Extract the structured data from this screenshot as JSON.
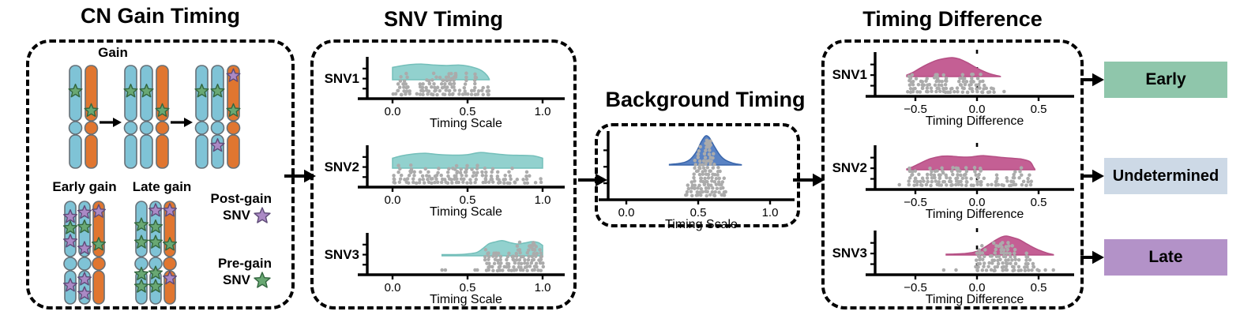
{
  "colors": {
    "ink": "#000000",
    "dots": "#ababab",
    "chromosome_blue": "#7fc3d6",
    "chromosome_orange": "#e07630",
    "chromosome_outline": "#667077",
    "star_green_fill": "#69a873",
    "star_green_stroke": "#33663f",
    "star_purple_fill": "#ab89c5",
    "star_purple_stroke": "#5e4b77",
    "density_teal_fill": "#92d1ce",
    "density_teal_stroke": "#74bfba",
    "density_blue_fill": "#5a83c4",
    "density_blue_stroke": "#3a66ab",
    "density_pink_fill": "#c45f94",
    "density_pink_stroke": "#b54f84"
  },
  "panels": {
    "cn_gain": {
      "title": "CN Gain Timing",
      "gain_label": "Gain",
      "early_gain_label": "Early gain",
      "late_gain_label": "Late gain",
      "legend_post": {
        "line1": "Post-gain",
        "line2": "SNV",
        "star": "p"
      },
      "legend_pre": {
        "line1": "Pre-gain",
        "line2": "SNV",
        "star": "g"
      },
      "gain_row_groups": [
        {
          "chroms": [
            {
              "color": "blue",
              "stars": [
                {
                  "c": "g",
                  "f": 0.25
                }
              ]
            },
            {
              "color": "orange",
              "stars": [
                {
                  "c": "g",
                  "f": 0.44
                }
              ]
            }
          ]
        },
        {
          "chroms": [
            {
              "color": "blue",
              "stars": [
                {
                  "c": "g",
                  "f": 0.25
                }
              ]
            },
            {
              "color": "blue",
              "stars": [
                {
                  "c": "g",
                  "f": 0.25
                }
              ]
            },
            {
              "color": "orange",
              "stars": [
                {
                  "c": "g",
                  "f": 0.44
                }
              ]
            }
          ]
        },
        {
          "chroms": [
            {
              "color": "blue",
              "stars": [
                {
                  "c": "g",
                  "f": 0.25
                }
              ]
            },
            {
              "color": "blue",
              "stars": [
                {
                  "c": "g",
                  "f": 0.25
                },
                {
                  "c": "p",
                  "f": 0.78
                }
              ]
            },
            {
              "color": "orange",
              "stars": [
                {
                  "c": "p",
                  "f": 0.1
                },
                {
                  "c": "g",
                  "f": 0.44
                }
              ]
            }
          ]
        }
      ],
      "early_group": {
        "chroms": [
          {
            "color": "blue",
            "stars": [
              {
                "c": "p",
                "f": 0.15
              },
              {
                "c": "g",
                "f": 0.26
              },
              {
                "c": "p",
                "f": 0.39
              },
              {
                "c": "p",
                "f": 0.82
              }
            ]
          },
          {
            "color": "blue",
            "stars": [
              {
                "c": "p",
                "f": 0.11
              },
              {
                "c": "g",
                "f": 0.25
              },
              {
                "c": "p",
                "f": 0.46
              },
              {
                "c": "p",
                "f": 0.76
              },
              {
                "c": "p",
                "f": 0.9
              }
            ]
          },
          {
            "color": "orange",
            "stars": [
              {
                "c": "p",
                "f": 0.1
              },
              {
                "c": "g",
                "f": 0.42
              }
            ]
          }
        ]
      },
      "late_group": {
        "chroms": [
          {
            "color": "blue",
            "stars": [
              {
                "c": "g",
                "f": 0.23
              },
              {
                "c": "g",
                "f": 0.4
              },
              {
                "c": "g",
                "f": 0.71
              },
              {
                "c": "g",
                "f": 0.83
              }
            ]
          },
          {
            "color": "blue",
            "stars": [
              {
                "c": "p",
                "f": 0.09
              },
              {
                "c": "g",
                "f": 0.25
              },
              {
                "c": "g",
                "f": 0.4
              },
              {
                "c": "g",
                "f": 0.7
              },
              {
                "c": "g",
                "f": 0.83
              }
            ]
          },
          {
            "color": "orange",
            "stars": [
              {
                "c": "p",
                "f": 0.09
              },
              {
                "c": "g",
                "f": 0.42
              },
              {
                "c": "p",
                "f": 0.75
              }
            ]
          }
        ]
      }
    },
    "snv_timing": {
      "title": "SNV Timing"
    },
    "background_timing": {
      "title": "Background Timing"
    },
    "timing_difference": {
      "title": "Timing Difference"
    }
  },
  "outcomes": [
    {
      "label": "Early",
      "color": "#8fc6ab"
    },
    {
      "label": "Undetermined",
      "color": "#cdd9e6"
    },
    {
      "label": "Late",
      "color": "#b392c8"
    }
  ],
  "chart_data": [
    {
      "id": "snv1",
      "panel": "SNV Timing",
      "type": "ridgeline-dotplot",
      "row_label": "SNV1",
      "x_label": "Timing Scale",
      "x_tick_labels": [
        "0.0",
        "0.5",
        "1.0"
      ],
      "x_tick_values": [
        0,
        0.5,
        1.0
      ],
      "x_range": [
        -0.18,
        1.15
      ],
      "density_color": "teal",
      "zero_line": false,
      "density": [
        [
          0.0,
          0.52
        ],
        [
          0.05,
          0.58
        ],
        [
          0.12,
          0.64
        ],
        [
          0.2,
          0.66
        ],
        [
          0.28,
          0.62
        ],
        [
          0.36,
          0.6
        ],
        [
          0.44,
          0.62
        ],
        [
          0.5,
          0.58
        ],
        [
          0.56,
          0.48
        ],
        [
          0.6,
          0.36
        ],
        [
          0.63,
          0.18
        ],
        [
          0.645,
          0.02
        ]
      ],
      "dots": {
        "seed": 11,
        "cap": 7,
        "groups": [
          {
            "from": 0.005,
            "to": 0.65,
            "n": 120
          }
        ],
        "outliers": []
      }
    },
    {
      "id": "snv2",
      "panel": "SNV Timing",
      "type": "ridgeline-dotplot",
      "row_label": "SNV2",
      "x_label": "Timing Scale",
      "x_tick_labels": [
        "0.0",
        "0.5",
        "1.0"
      ],
      "x_tick_values": [
        0,
        0.5,
        1.0
      ],
      "x_range": [
        -0.18,
        1.15
      ],
      "density_color": "teal",
      "zero_line": false,
      "density": [
        [
          0.0,
          0.42
        ],
        [
          0.06,
          0.52
        ],
        [
          0.14,
          0.6
        ],
        [
          0.22,
          0.63
        ],
        [
          0.3,
          0.58
        ],
        [
          0.4,
          0.55
        ],
        [
          0.5,
          0.57
        ],
        [
          0.58,
          0.66
        ],
        [
          0.66,
          0.62
        ],
        [
          0.76,
          0.56
        ],
        [
          0.86,
          0.54
        ],
        [
          0.94,
          0.52
        ],
        [
          1.0,
          0.42
        ]
      ],
      "dots": {
        "seed": 22,
        "cap": 6,
        "groups": [
          {
            "from": 0.005,
            "to": 0.995,
            "n": 140
          }
        ],
        "outliers": []
      }
    },
    {
      "id": "snv3",
      "panel": "SNV Timing",
      "type": "ridgeline-dotplot",
      "row_label": "SNV3",
      "x_label": "Timing Scale",
      "x_tick_labels": [
        "0.0",
        "0.5",
        "1.0"
      ],
      "x_tick_values": [
        0,
        0.5,
        1.0
      ],
      "x_range": [
        -0.18,
        1.15
      ],
      "density_color": "teal",
      "zero_line": false,
      "density": [
        [
          0.33,
          0.05
        ],
        [
          0.42,
          0.05
        ],
        [
          0.5,
          0.08
        ],
        [
          0.56,
          0.14
        ],
        [
          0.6,
          0.3
        ],
        [
          0.64,
          0.5
        ],
        [
          0.68,
          0.58
        ],
        [
          0.73,
          0.64
        ],
        [
          0.78,
          0.56
        ],
        [
          0.83,
          0.5
        ],
        [
          0.88,
          0.54
        ],
        [
          0.93,
          0.6
        ],
        [
          0.97,
          0.56
        ],
        [
          1.0,
          0.44
        ]
      ],
      "dots": {
        "seed": 33,
        "cap": 9,
        "groups": [
          {
            "from": 0.615,
            "to": 1.0,
            "n": 115
          }
        ],
        "outliers": [
          0.33,
          0.352,
          0.55,
          0.565
        ]
      }
    },
    {
      "id": "bg",
      "panel": "Background Timing",
      "type": "density-dotplot",
      "row_label": "",
      "x_label": "Timing Scale",
      "x_tick_labels": [
        "0.0",
        "0.5",
        "1.0"
      ],
      "x_tick_values": [
        0,
        0.5,
        1.0
      ],
      "x_range": [
        -0.18,
        1.18
      ],
      "density_color": "blue",
      "zero_line": false,
      "density": [
        [
          0.3,
          0.02
        ],
        [
          0.36,
          0.05
        ],
        [
          0.41,
          0.1
        ],
        [
          0.45,
          0.22
        ],
        [
          0.49,
          0.48
        ],
        [
          0.52,
          0.78
        ],
        [
          0.545,
          0.97
        ],
        [
          0.56,
          1.0
        ],
        [
          0.58,
          0.92
        ],
        [
          0.61,
          0.66
        ],
        [
          0.645,
          0.38
        ],
        [
          0.68,
          0.2
        ],
        [
          0.72,
          0.1
        ],
        [
          0.76,
          0.04
        ],
        [
          0.8,
          0.01
        ]
      ],
      "dots": {
        "seed": 44,
        "cap": 17,
        "groups": [
          {
            "dist": "normal",
            "mean": 0.555,
            "sd": 0.07,
            "n": 130
          }
        ],
        "outliers": []
      }
    },
    {
      "id": "td1",
      "panel": "Timing Difference",
      "type": "ridgeline-dotplot",
      "row_label": "SNV1",
      "x_label": "Timing Difference",
      "x_tick_labels": [
        "−0.5",
        "0.0",
        "0.5"
      ],
      "x_tick_values": [
        -0.5,
        0,
        0.5
      ],
      "x_range": [
        -0.83,
        0.79
      ],
      "density_color": "pink",
      "zero_line": true,
      "density": [
        [
          -0.57,
          0.08
        ],
        [
          -0.52,
          0.22
        ],
        [
          -0.46,
          0.45
        ],
        [
          -0.4,
          0.66
        ],
        [
          -0.33,
          0.85
        ],
        [
          -0.26,
          0.96
        ],
        [
          -0.2,
          1.0
        ],
        [
          -0.14,
          0.92
        ],
        [
          -0.08,
          0.74
        ],
        [
          -0.02,
          0.52
        ],
        [
          0.04,
          0.32
        ],
        [
          0.1,
          0.16
        ],
        [
          0.15,
          0.07
        ],
        [
          0.19,
          0.01
        ]
      ],
      "dots": {
        "seed": 55,
        "cap": 6,
        "groups": [
          {
            "from": -0.575,
            "to": 0.14,
            "n": 110
          }
        ],
        "outliers": [
          0.22
        ]
      }
    },
    {
      "id": "td2",
      "panel": "Timing Difference",
      "type": "ridgeline-dotplot",
      "row_label": "SNV2",
      "x_label": "Timing Difference",
      "x_tick_labels": [
        "−0.5",
        "0.0",
        "0.5"
      ],
      "x_tick_values": [
        -0.5,
        0,
        0.5
      ],
      "x_range": [
        -0.83,
        0.79
      ],
      "density_color": "pink",
      "zero_line": true,
      "density": [
        [
          -0.57,
          0.04
        ],
        [
          -0.52,
          0.16
        ],
        [
          -0.45,
          0.38
        ],
        [
          -0.38,
          0.58
        ],
        [
          -0.3,
          0.7
        ],
        [
          -0.22,
          0.72
        ],
        [
          -0.14,
          0.68
        ],
        [
          -0.06,
          0.67
        ],
        [
          0.0,
          0.72
        ],
        [
          0.06,
          0.74
        ],
        [
          0.14,
          0.69
        ],
        [
          0.22,
          0.64
        ],
        [
          0.3,
          0.6
        ],
        [
          0.37,
          0.55
        ],
        [
          0.43,
          0.42
        ],
        [
          0.46,
          0.12
        ],
        [
          0.47,
          0.02
        ]
      ],
      "dots": {
        "seed": 66,
        "cap": 6,
        "groups": [
          {
            "from": -0.55,
            "to": 0.44,
            "n": 140
          }
        ],
        "outliers": [
          -0.63
        ]
      }
    },
    {
      "id": "td3",
      "panel": "Timing Difference",
      "type": "ridgeline-dotplot",
      "row_label": "SNV3",
      "x_label": "Timing Difference",
      "x_tick_labels": [
        "−0.5",
        "0.0",
        "0.5"
      ],
      "x_tick_values": [
        -0.5,
        0,
        0.5
      ],
      "x_range": [
        -0.83,
        0.79
      ],
      "density_color": "pink",
      "zero_line": true,
      "density": [
        [
          -0.25,
          0.04
        ],
        [
          -0.18,
          0.05
        ],
        [
          -0.1,
          0.08
        ],
        [
          -0.03,
          0.14
        ],
        [
          0.03,
          0.28
        ],
        [
          0.09,
          0.52
        ],
        [
          0.15,
          0.78
        ],
        [
          0.2,
          0.95
        ],
        [
          0.24,
          1.0
        ],
        [
          0.29,
          0.92
        ],
        [
          0.34,
          0.82
        ],
        [
          0.39,
          0.64
        ],
        [
          0.45,
          0.42
        ],
        [
          0.51,
          0.24
        ],
        [
          0.57,
          0.1
        ],
        [
          0.62,
          0.02
        ]
      ],
      "dots": {
        "seed": 77,
        "cap": 9,
        "groups": [
          {
            "from": -0.01,
            "to": 0.5,
            "n": 105
          }
        ],
        "outliers": [
          -0.27,
          -0.17,
          0.555,
          0.62
        ]
      }
    }
  ]
}
